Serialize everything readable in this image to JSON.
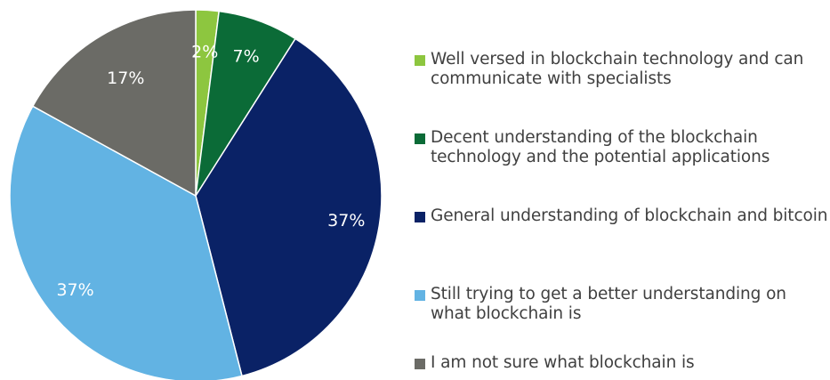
{
  "chart_data": {
    "type": "pie",
    "slices": [
      {
        "label": "Well versed in blockchain technology and can communicate with specialists",
        "value": 2,
        "value_label": "2%",
        "color": "#8dc63f"
      },
      {
        "label": "Decent understanding of the blockchain technology and the potential applications",
        "value": 7,
        "value_label": "7%",
        "color": "#0b6b37"
      },
      {
        "label": "General understanding of blockchain and bitcoin",
        "value": 37,
        "value_label": "37%",
        "color": "#0a2266"
      },
      {
        "label": "Still trying to get a better understanding on what blockchain is",
        "value": 37,
        "value_label": "37%",
        "color": "#62b3e3"
      },
      {
        "label": "I am not sure what blockchain is",
        "value": 17,
        "value_label": "17%",
        "color": "#6b6b66"
      }
    ],
    "legend_position": "right",
    "start_angle": "12 o'clock",
    "direction": "clockwise"
  }
}
